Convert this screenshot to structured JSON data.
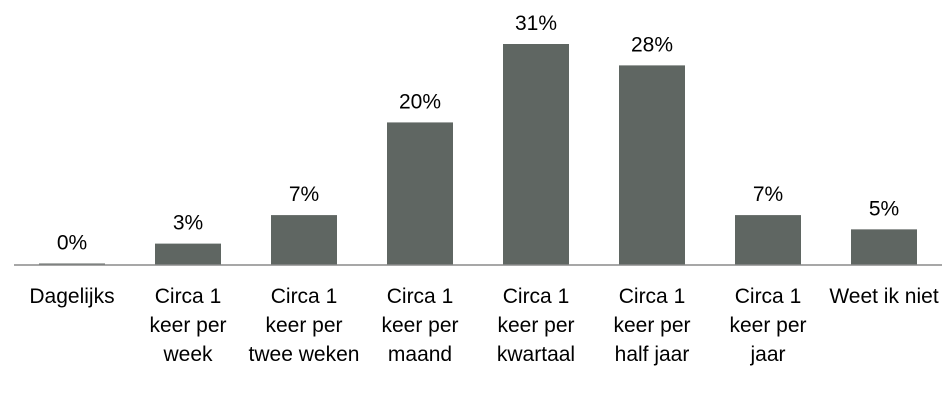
{
  "chart_data": {
    "type": "bar",
    "categories": [
      "Dagelijks",
      "Circa 1 keer per week",
      "Circa 1 keer per twee weken",
      "Circa 1 keer per maand",
      "Circa 1 keer per kwartaal",
      "Circa 1 keer per half jaar",
      "Circa 1 keer per jaar",
      "Weet ik niet"
    ],
    "values": [
      0,
      3,
      7,
      20,
      31,
      28,
      7,
      5
    ],
    "value_labels": [
      "0%",
      "3%",
      "7%",
      "20%",
      "31%",
      "28%",
      "7%",
      "5%"
    ],
    "color": "#5f6662"
  }
}
